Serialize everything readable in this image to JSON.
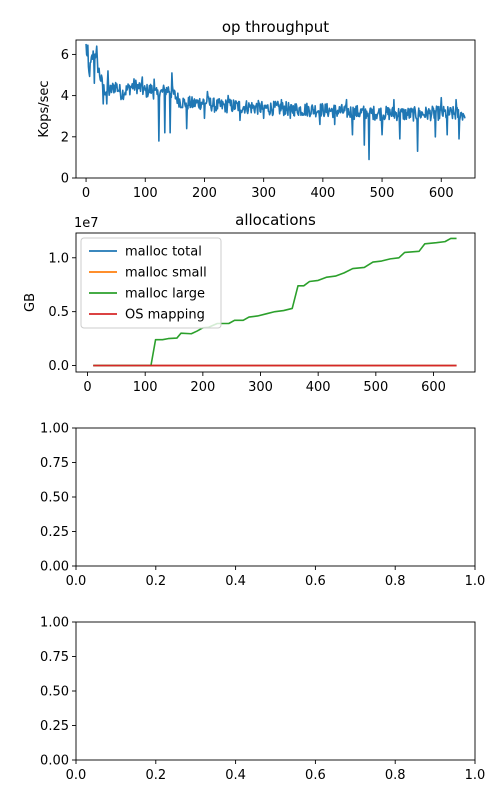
{
  "chart_data": [
    {
      "type": "line",
      "title": "op throughput",
      "xlabel": "",
      "ylabel": "Kops/sec",
      "xlim": [
        -17,
        657
      ],
      "ylim": [
        0,
        6.7
      ],
      "xticks": [
        0,
        100,
        200,
        300,
        400,
        500,
        600
      ],
      "yticks": [
        0,
        2,
        4,
        6
      ],
      "xtick_labels": [
        "0",
        "100",
        "200",
        "300",
        "400",
        "500",
        "600"
      ],
      "ytick_labels": [
        "0",
        "2",
        "4",
        "6"
      ],
      "grid": false,
      "series": [
        {
          "color": "#1f77b4",
          "anchors": [
            [
              0,
              6.4
            ],
            [
              5,
              5.0
            ],
            [
              10,
              5.8
            ],
            [
              15,
              6.2
            ],
            [
              20,
              5.4
            ],
            [
              25,
              4.8
            ],
            [
              30,
              4.3
            ],
            [
              40,
              4.2
            ],
            [
              50,
              4.5
            ],
            [
              60,
              4.1
            ],
            [
              70,
              4.3
            ],
            [
              80,
              4.5
            ],
            [
              90,
              4.4
            ],
            [
              100,
              4.2
            ],
            [
              110,
              4.3
            ],
            [
              120,
              4.0
            ],
            [
              130,
              4.2
            ],
            [
              140,
              4.3
            ],
            [
              150,
              4.0
            ],
            [
              160,
              3.7
            ],
            [
              180,
              3.6
            ],
            [
              200,
              3.7
            ],
            [
              220,
              3.5
            ],
            [
              250,
              3.5
            ],
            [
              300,
              3.4
            ],
            [
              350,
              3.35
            ],
            [
              400,
              3.3
            ],
            [
              450,
              3.2
            ],
            [
              500,
              3.15
            ],
            [
              550,
              3.1
            ],
            [
              600,
              3.15
            ],
            [
              640,
              3.1
            ]
          ],
          "noise": 0.35,
          "dips": [
            [
              14,
              4.6
            ],
            [
              29,
              3.6
            ],
            [
              35,
              3.6
            ],
            [
              123,
              1.8
            ],
            [
              133,
              2.2
            ],
            [
              142,
              2.2
            ],
            [
              170,
              2.4
            ],
            [
              200,
              2.9
            ],
            [
              260,
              2.8
            ],
            [
              300,
              2.9
            ],
            [
              345,
              2.9
            ],
            [
              395,
              2.6
            ],
            [
              420,
              2.6
            ],
            [
              450,
              2.1
            ],
            [
              470,
              1.6
            ],
            [
              478,
              0.9
            ],
            [
              500,
              2.1
            ],
            [
              530,
              1.9
            ],
            [
              560,
              1.3
            ],
            [
              590,
              2.0
            ],
            [
              610,
              2.1
            ],
            [
              630,
              1.9
            ]
          ],
          "peaks": [
            [
              3,
              6.45
            ],
            [
              18,
              6.4
            ],
            [
              37,
              5.2
            ],
            [
              95,
              4.9
            ],
            [
              115,
              4.8
            ],
            [
              145,
              5.1
            ],
            [
              205,
              4.2
            ],
            [
              240,
              4.0
            ],
            [
              330,
              3.8
            ],
            [
              440,
              3.8
            ],
            [
              520,
              3.8
            ],
            [
              600,
              3.9
            ],
            [
              625,
              3.8
            ]
          ],
          "n": 640
        }
      ]
    },
    {
      "type": "line",
      "title": "allocations",
      "xlabel": "",
      "ylabel": "GB",
      "offset_text": "1e7",
      "xlim": [
        -20,
        672
      ],
      "ylim": [
        -0.6,
        12.3
      ],
      "xticks": [
        0,
        100,
        200,
        300,
        400,
        500,
        600
      ],
      "yticks": [
        0,
        5,
        10
      ],
      "xtick_labels": [
        "0",
        "100",
        "200",
        "300",
        "400",
        "500",
        "600"
      ],
      "ytick_labels": [
        "0.0",
        "0.5",
        "1.0"
      ],
      "grid": false,
      "legend": "top-left",
      "series": [
        {
          "name": "malloc total",
          "color": "#1f77b4",
          "points": [
            [
              10,
              0
            ],
            [
              640,
              0
            ]
          ]
        },
        {
          "name": "malloc small",
          "color": "#ff7f0e",
          "points": [
            [
              10,
              0
            ],
            [
              640,
              0
            ]
          ]
        },
        {
          "name": "malloc large",
          "color": "#2ca02c",
          "points": [
            [
              10,
              0
            ],
            [
              110,
              0
            ],
            [
              118,
              2.4
            ],
            [
              130,
              2.4
            ],
            [
              140,
              2.5
            ],
            [
              155,
              2.55
            ],
            [
              162,
              3.0
            ],
            [
              180,
              2.95
            ],
            [
              190,
              3.2
            ],
            [
              200,
              3.5
            ],
            [
              210,
              3.55
            ],
            [
              225,
              3.9
            ],
            [
              245,
              3.9
            ],
            [
              255,
              4.2
            ],
            [
              270,
              4.2
            ],
            [
              280,
              4.5
            ],
            [
              295,
              4.6
            ],
            [
              310,
              4.8
            ],
            [
              325,
              5.0
            ],
            [
              340,
              5.1
            ],
            [
              355,
              5.3
            ],
            [
              365,
              7.4
            ],
            [
              375,
              7.4
            ],
            [
              385,
              7.8
            ],
            [
              400,
              7.9
            ],
            [
              415,
              8.2
            ],
            [
              430,
              8.3
            ],
            [
              445,
              8.6
            ],
            [
              460,
              9.0
            ],
            [
              480,
              9.1
            ],
            [
              495,
              9.6
            ],
            [
              510,
              9.7
            ],
            [
              525,
              9.9
            ],
            [
              540,
              10.0
            ],
            [
              550,
              10.5
            ],
            [
              575,
              10.6
            ],
            [
              585,
              11.3
            ],
            [
              605,
              11.4
            ],
            [
              620,
              11.5
            ],
            [
              630,
              11.8
            ],
            [
              640,
              11.8
            ]
          ]
        },
        {
          "name": "OS mapping",
          "color": "#d62728",
          "points": [
            [
              10,
              0
            ],
            [
              640,
              0
            ]
          ]
        }
      ]
    },
    {
      "type": "line",
      "title": "",
      "xlim": [
        0,
        1
      ],
      "ylim": [
        0,
        1
      ],
      "xticks": [
        0,
        0.2,
        0.4,
        0.6,
        0.8,
        1.0
      ],
      "yticks": [
        0,
        0.25,
        0.5,
        0.75,
        1.0
      ],
      "xtick_labels": [
        "0.0",
        "0.2",
        "0.4",
        "0.6",
        "0.8",
        "1.0"
      ],
      "ytick_labels": [
        "0.00",
        "0.25",
        "0.50",
        "0.75",
        "1.00"
      ],
      "series": []
    },
    {
      "type": "line",
      "title": "",
      "xlim": [
        0,
        1
      ],
      "ylim": [
        0,
        1
      ],
      "xticks": [
        0,
        0.2,
        0.4,
        0.6,
        0.8,
        1.0
      ],
      "yticks": [
        0,
        0.25,
        0.5,
        0.75,
        1.0
      ],
      "xtick_labels": [
        "0.0",
        "0.2",
        "0.4",
        "0.6",
        "0.8",
        "1.0"
      ],
      "ytick_labels": [
        "0.00",
        "0.25",
        "0.50",
        "0.75",
        "1.00"
      ],
      "series": []
    }
  ]
}
